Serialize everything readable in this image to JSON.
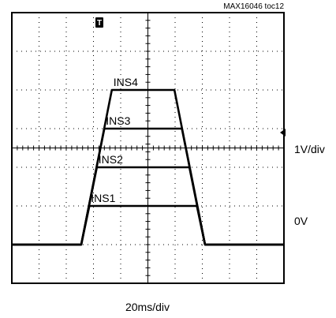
{
  "figure_id": "MAX16046 toc12",
  "chart_data": {
    "type": "line",
    "title": "",
    "xlabel": "20ms/div",
    "ylabel": "1V/div",
    "x_unit": "ms",
    "y_unit": "V",
    "xlim": [
      0,
      200
    ],
    "ylim": [
      -1,
      6
    ],
    "grid": true,
    "x_divisions": 10,
    "y_divisions": 7,
    "markers": {
      "trigger": "T",
      "ground_label": "0V",
      "right_arrow": "trigger-level"
    },
    "series": [
      {
        "name": "INS1",
        "label": "INS1",
        "x": [
          0,
          51,
          57,
          136,
          142,
          200
        ],
        "values": [
          0,
          0,
          1,
          1,
          0,
          0
        ]
      },
      {
        "name": "INS2",
        "label": "INS2",
        "x": [
          0,
          51,
          62.5,
          130.5,
          142,
          200
        ],
        "values": [
          0,
          0,
          2,
          2,
          0,
          0
        ]
      },
      {
        "name": "INS3",
        "label": "INS3",
        "x": [
          0,
          51,
          68,
          125,
          142,
          200
        ],
        "values": [
          0,
          0,
          3,
          3,
          0,
          0
        ]
      },
      {
        "name": "INS4",
        "label": "INS4",
        "x": [
          0,
          51,
          73.5,
          119.5,
          142,
          200
        ],
        "values": [
          0,
          0,
          4,
          4,
          0,
          0
        ]
      }
    ]
  }
}
